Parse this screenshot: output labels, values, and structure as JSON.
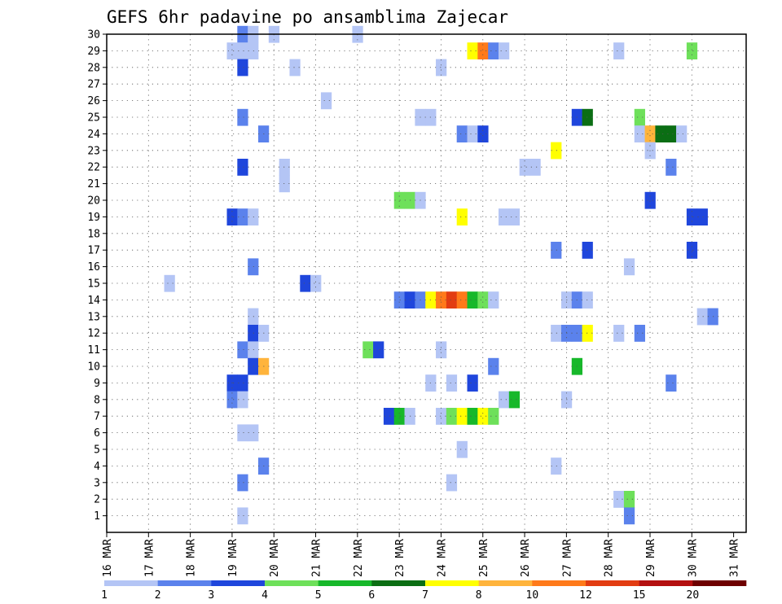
{
  "chart_data": {
    "type": "heatmap",
    "title": "GEFS 6hr padavine po ansamblima Zajecar",
    "x_labels": [
      "16 MAR",
      "17 MAR",
      "18 MAR",
      "19 MAR",
      "20 MAR",
      "21 MAR",
      "22 MAR",
      "23 MAR",
      "24 MAR",
      "25 MAR",
      "26 MAR",
      "27 MAR",
      "28 MAR",
      "29 MAR",
      "30 MAR",
      "31 MAR"
    ],
    "x_range": [
      0,
      15.3
    ],
    "y_labels": [
      "1",
      "2",
      "3",
      "4",
      "5",
      "6",
      "7",
      "8",
      "9",
      "10",
      "11",
      "12",
      "13",
      "14",
      "15",
      "16",
      "17",
      "18",
      "19",
      "20",
      "21",
      "22",
      "23",
      "24",
      "25",
      "26",
      "27",
      "28",
      "29",
      "30"
    ],
    "y_range": [
      0,
      30
    ],
    "grid": true,
    "colorbar": {
      "labels": [
        "1",
        "2",
        "3",
        "4",
        "5",
        "6",
        "7",
        "8",
        "10",
        "12",
        "15",
        "20"
      ],
      "colors": [
        "#b4c5f5",
        "#5b82ec",
        "#1f46dc",
        "#6ee05a",
        "#17b82a",
        "#0b6e14",
        "#ffff00",
        "#ffb43c",
        "#ff7a1a",
        "#e23c12",
        "#b41010",
        "#6e0000"
      ]
    },
    "cells": [
      {
        "t": 3.25,
        "m": 30,
        "c": 1
      },
      {
        "t": 3.5,
        "m": 30,
        "c": 0
      },
      {
        "t": 4.0,
        "m": 30,
        "c": 0
      },
      {
        "t": 6.0,
        "m": 30,
        "c": 0
      },
      {
        "t": 3.0,
        "m": 29,
        "c": 0
      },
      {
        "t": 3.25,
        "m": 29,
        "c": 0
      },
      {
        "t": 3.5,
        "m": 29,
        "c": 0
      },
      {
        "t": 8.75,
        "m": 29,
        "c": 6
      },
      {
        "t": 9.0,
        "m": 29,
        "c": 8
      },
      {
        "t": 9.25,
        "m": 29,
        "c": 1
      },
      {
        "t": 9.5,
        "m": 29,
        "c": 0
      },
      {
        "t": 12.25,
        "m": 29,
        "c": 0
      },
      {
        "t": 14.0,
        "m": 29,
        "c": 3
      },
      {
        "t": 3.25,
        "m": 28,
        "c": 2
      },
      {
        "t": 4.5,
        "m": 28,
        "c": 0
      },
      {
        "t": 8.0,
        "m": 28,
        "c": 0
      },
      {
        "t": 5.25,
        "m": 26,
        "c": 0
      },
      {
        "t": 3.25,
        "m": 25,
        "c": 1
      },
      {
        "t": 7.5,
        "m": 25,
        "c": 0
      },
      {
        "t": 7.75,
        "m": 25,
        "c": 0
      },
      {
        "t": 11.25,
        "m": 25,
        "c": 2
      },
      {
        "t": 11.5,
        "m": 25,
        "c": 5
      },
      {
        "t": 12.75,
        "m": 25,
        "c": 3
      },
      {
        "t": 3.75,
        "m": 24,
        "c": 1
      },
      {
        "t": 8.5,
        "m": 24,
        "c": 1
      },
      {
        "t": 8.75,
        "m": 24,
        "c": 0
      },
      {
        "t": 9.0,
        "m": 24,
        "c": 2
      },
      {
        "t": 12.75,
        "m": 24,
        "c": 0
      },
      {
        "t": 13.0,
        "m": 24,
        "c": 7
      },
      {
        "t": 13.25,
        "m": 24,
        "c": 5
      },
      {
        "t": 13.5,
        "m": 24,
        "c": 5
      },
      {
        "t": 13.75,
        "m": 24,
        "c": 0
      },
      {
        "t": 10.75,
        "m": 23,
        "c": 6
      },
      {
        "t": 13.0,
        "m": 23,
        "c": 0
      },
      {
        "t": 3.25,
        "m": 22,
        "c": 2
      },
      {
        "t": 4.25,
        "m": 22,
        "c": 0
      },
      {
        "t": 10.0,
        "m": 22,
        "c": 0
      },
      {
        "t": 10.25,
        "m": 22,
        "c": 0
      },
      {
        "t": 13.5,
        "m": 22,
        "c": 1
      },
      {
        "t": 4.25,
        "m": 21,
        "c": 0
      },
      {
        "t": 7.0,
        "m": 20,
        "c": 3
      },
      {
        "t": 7.25,
        "m": 20,
        "c": 3
      },
      {
        "t": 7.5,
        "m": 20,
        "c": 0
      },
      {
        "t": 13.0,
        "m": 20,
        "c": 2
      },
      {
        "t": 3.0,
        "m": 19,
        "c": 2
      },
      {
        "t": 3.25,
        "m": 19,
        "c": 1
      },
      {
        "t": 3.5,
        "m": 19,
        "c": 0
      },
      {
        "t": 8.5,
        "m": 19,
        "c": 6
      },
      {
        "t": 9.5,
        "m": 19,
        "c": 0
      },
      {
        "t": 9.75,
        "m": 19,
        "c": 0
      },
      {
        "t": 14.0,
        "m": 19,
        "c": 2
      },
      {
        "t": 14.25,
        "m": 19,
        "c": 2
      },
      {
        "t": 10.75,
        "m": 17,
        "c": 1
      },
      {
        "t": 11.5,
        "m": 17,
        "c": 2
      },
      {
        "t": 14.0,
        "m": 17,
        "c": 2
      },
      {
        "t": 3.5,
        "m": 16,
        "c": 1
      },
      {
        "t": 12.5,
        "m": 16,
        "c": 0
      },
      {
        "t": 1.5,
        "m": 15,
        "c": 0
      },
      {
        "t": 4.75,
        "m": 15,
        "c": 2
      },
      {
        "t": 5.0,
        "m": 15,
        "c": 0
      },
      {
        "t": 7.0,
        "m": 14,
        "c": 1
      },
      {
        "t": 7.25,
        "m": 14,
        "c": 2
      },
      {
        "t": 7.5,
        "m": 14,
        "c": 1
      },
      {
        "t": 7.75,
        "m": 14,
        "c": 6
      },
      {
        "t": 8.0,
        "m": 14,
        "c": 8
      },
      {
        "t": 8.25,
        "m": 14,
        "c": 9
      },
      {
        "t": 8.5,
        "m": 14,
        "c": 8
      },
      {
        "t": 8.75,
        "m": 14,
        "c": 4
      },
      {
        "t": 9.0,
        "m": 14,
        "c": 3
      },
      {
        "t": 9.25,
        "m": 14,
        "c": 0
      },
      {
        "t": 11.0,
        "m": 14,
        "c": 0
      },
      {
        "t": 11.25,
        "m": 14,
        "c": 1
      },
      {
        "t": 11.5,
        "m": 14,
        "c": 0
      },
      {
        "t": 3.5,
        "m": 13,
        "c": 0
      },
      {
        "t": 14.25,
        "m": 13,
        "c": 0
      },
      {
        "t": 14.5,
        "m": 13,
        "c": 1
      },
      {
        "t": 3.5,
        "m": 12,
        "c": 2
      },
      {
        "t": 3.75,
        "m": 12,
        "c": 0
      },
      {
        "t": 10.75,
        "m": 12,
        "c": 0
      },
      {
        "t": 11.0,
        "m": 12,
        "c": 1
      },
      {
        "t": 11.25,
        "m": 12,
        "c": 1
      },
      {
        "t": 11.5,
        "m": 12,
        "c": 6
      },
      {
        "t": 12.25,
        "m": 12,
        "c": 0
      },
      {
        "t": 12.75,
        "m": 12,
        "c": 1
      },
      {
        "t": 3.25,
        "m": 11,
        "c": 1
      },
      {
        "t": 3.5,
        "m": 11,
        "c": 0
      },
      {
        "t": 6.25,
        "m": 11,
        "c": 3
      },
      {
        "t": 6.5,
        "m": 11,
        "c": 2
      },
      {
        "t": 8.0,
        "m": 11,
        "c": 0
      },
      {
        "t": 3.5,
        "m": 10,
        "c": 2
      },
      {
        "t": 3.75,
        "m": 10,
        "c": 7
      },
      {
        "t": 9.25,
        "m": 10,
        "c": 1
      },
      {
        "t": 11.25,
        "m": 10,
        "c": 4
      },
      {
        "t": 3.0,
        "m": 9,
        "c": 2
      },
      {
        "t": 3.25,
        "m": 9,
        "c": 2
      },
      {
        "t": 7.75,
        "m": 9,
        "c": 0
      },
      {
        "t": 8.25,
        "m": 9,
        "c": 0
      },
      {
        "t": 8.75,
        "m": 9,
        "c": 2
      },
      {
        "t": 13.5,
        "m": 9,
        "c": 1
      },
      {
        "t": 3.0,
        "m": 8,
        "c": 1
      },
      {
        "t": 3.25,
        "m": 8,
        "c": 0
      },
      {
        "t": 9.5,
        "m": 8,
        "c": 0
      },
      {
        "t": 9.75,
        "m": 8,
        "c": 4
      },
      {
        "t": 11.0,
        "m": 8,
        "c": 0
      },
      {
        "t": 6.75,
        "m": 7,
        "c": 2
      },
      {
        "t": 7.0,
        "m": 7,
        "c": 4
      },
      {
        "t": 7.25,
        "m": 7,
        "c": 0
      },
      {
        "t": 8.0,
        "m": 7,
        "c": 0
      },
      {
        "t": 8.25,
        "m": 7,
        "c": 3
      },
      {
        "t": 8.5,
        "m": 7,
        "c": 6
      },
      {
        "t": 8.75,
        "m": 7,
        "c": 4
      },
      {
        "t": 9.0,
        "m": 7,
        "c": 6
      },
      {
        "t": 9.25,
        "m": 7,
        "c": 3
      },
      {
        "t": 3.25,
        "m": 6,
        "c": 0
      },
      {
        "t": 3.5,
        "m": 6,
        "c": 0
      },
      {
        "t": 8.5,
        "m": 5,
        "c": 0
      },
      {
        "t": 3.75,
        "m": 4,
        "c": 1
      },
      {
        "t": 10.75,
        "m": 4,
        "c": 0
      },
      {
        "t": 3.25,
        "m": 3,
        "c": 1
      },
      {
        "t": 8.25,
        "m": 3,
        "c": 0
      },
      {
        "t": 12.25,
        "m": 2,
        "c": 0
      },
      {
        "t": 12.5,
        "m": 2,
        "c": 3
      },
      {
        "t": 3.25,
        "m": 1,
        "c": 0
      },
      {
        "t": 12.5,
        "m": 1,
        "c": 1
      }
    ]
  }
}
